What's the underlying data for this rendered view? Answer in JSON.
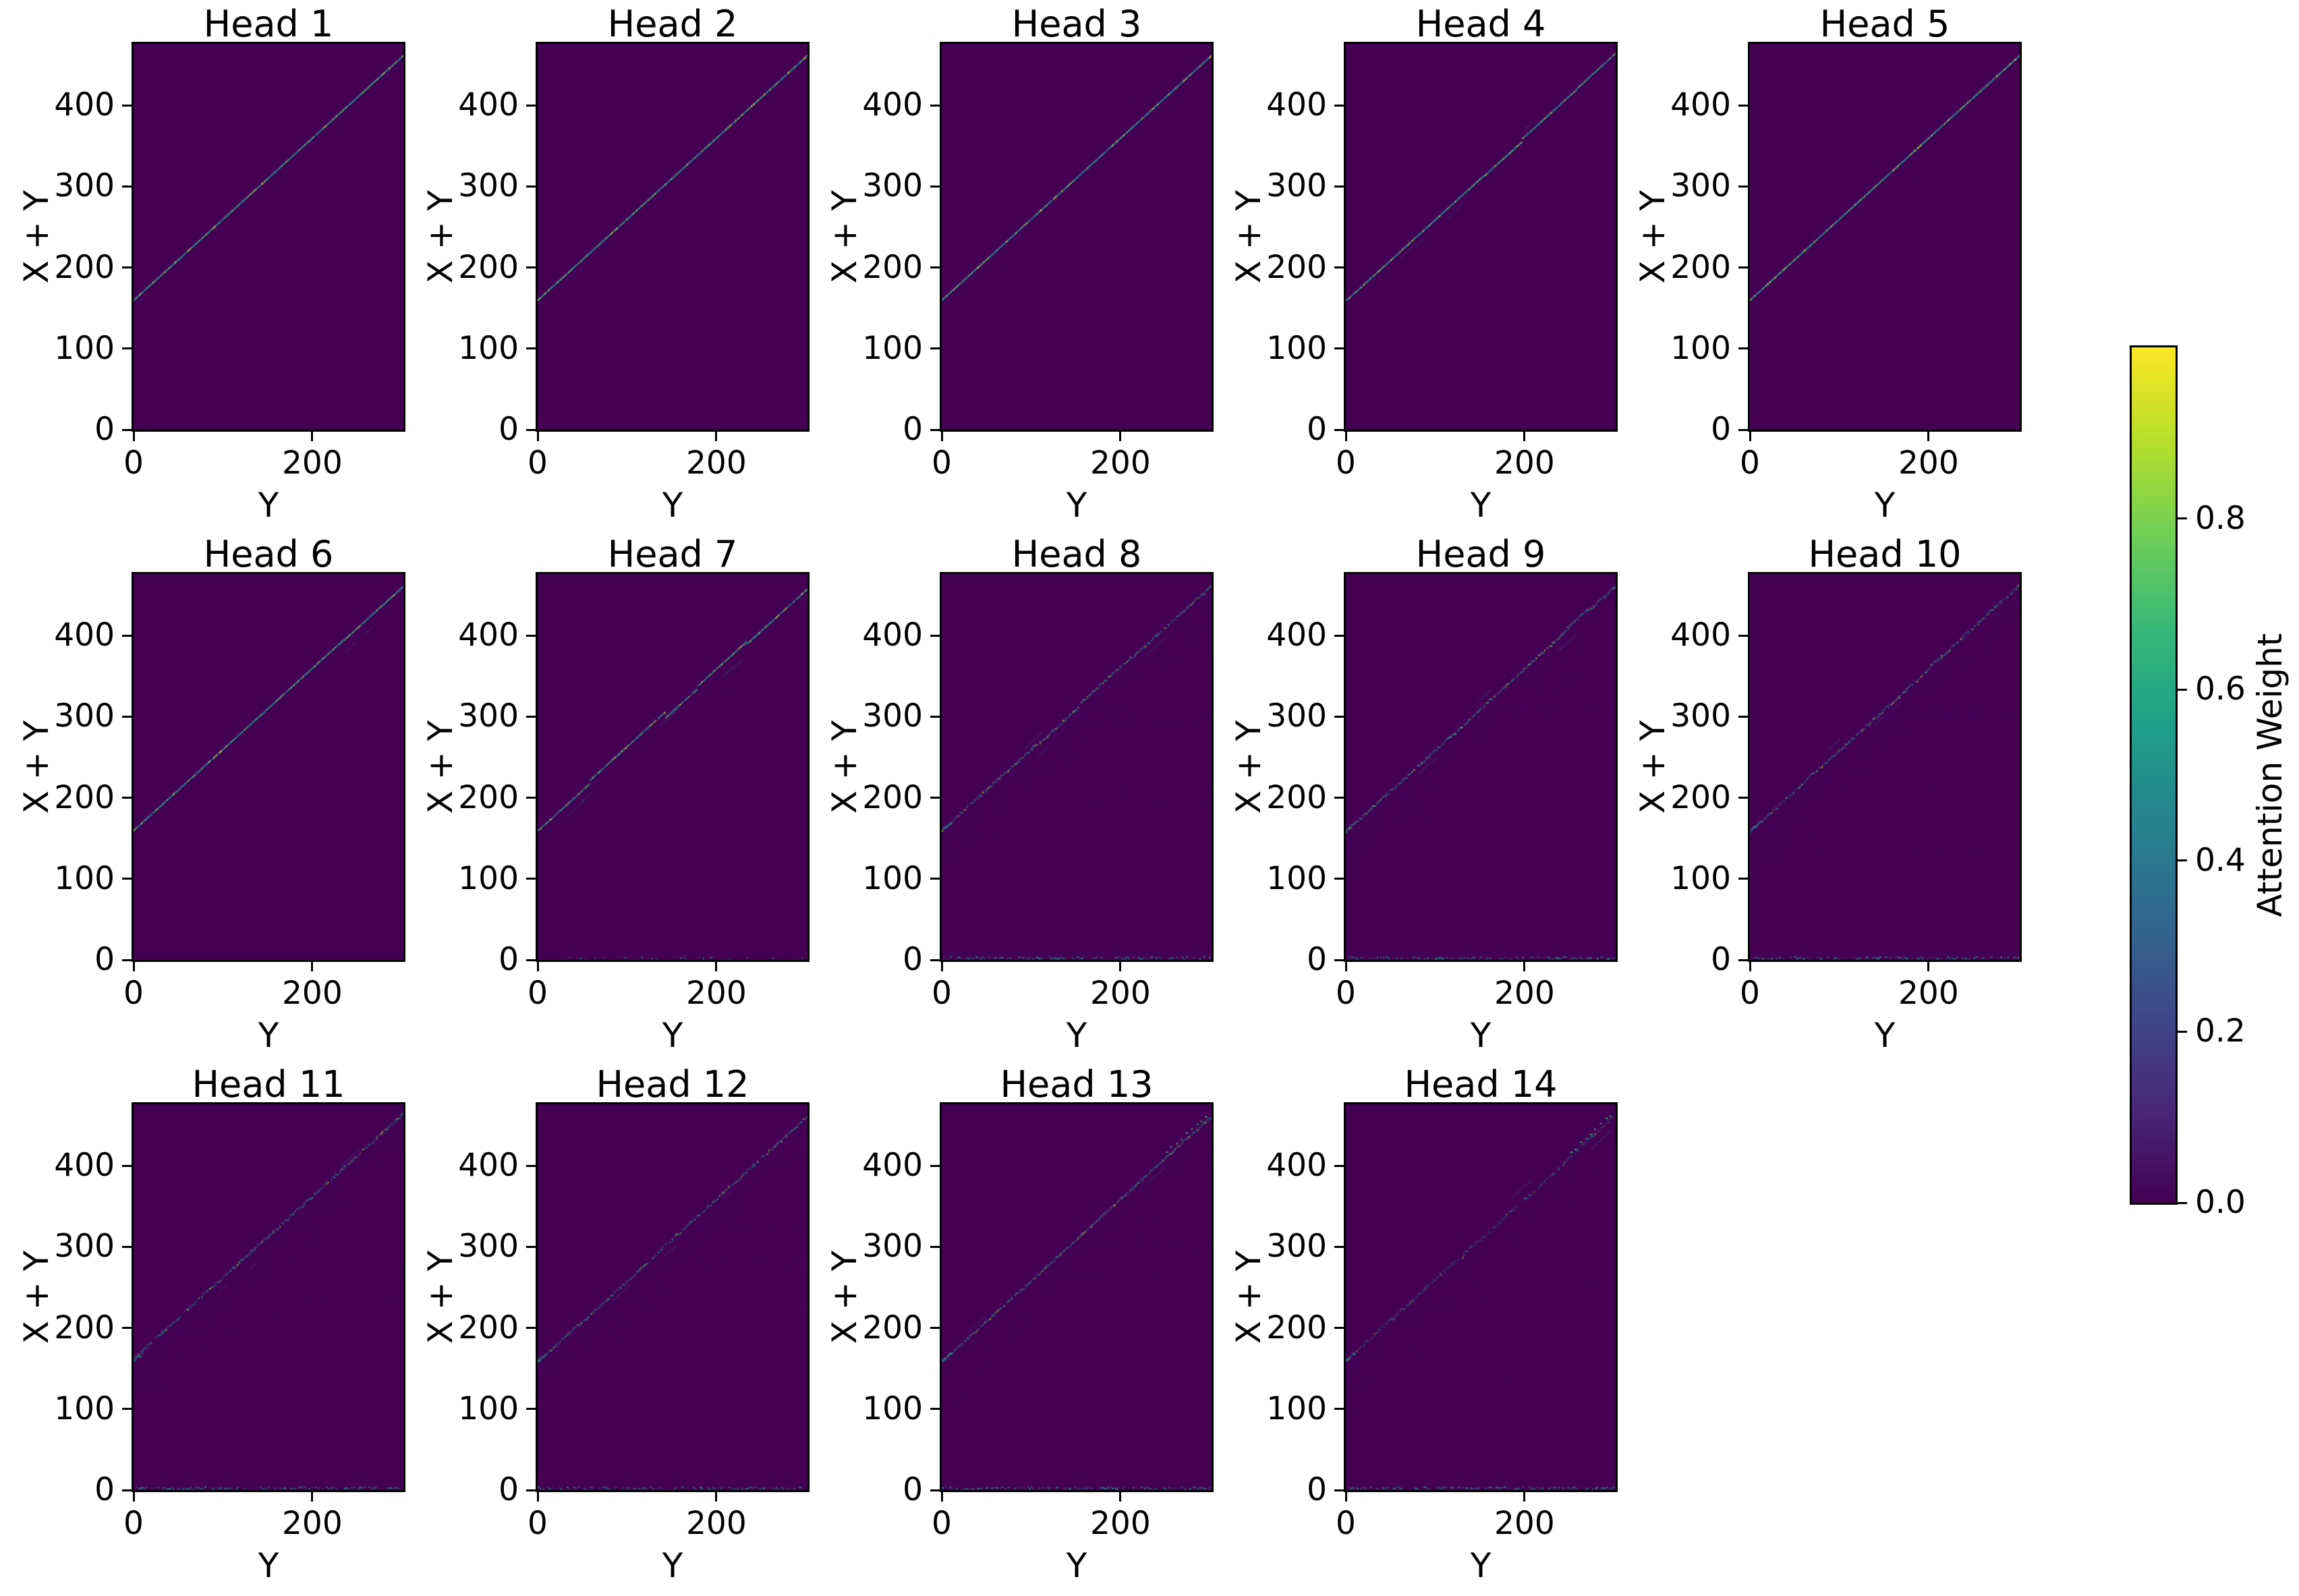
{
  "figure": {
    "description": "Grid of attention-weight heatmaps for 14 transformer heads",
    "background": "#ffffff"
  },
  "chart_data": {
    "type": "heatmap",
    "colormap": "viridis",
    "grid": {
      "rows": 3,
      "cols": 5,
      "count": 14
    },
    "axes": {
      "xlabel": "Y",
      "ylabel": "X + Y",
      "xticks": [
        0,
        200
      ],
      "yticks": [
        0,
        100,
        200,
        300,
        400
      ],
      "xlim": [
        0,
        302
      ],
      "ylim": [
        0,
        476
      ]
    },
    "diagonal": {
      "description": "bright attention ridge along X+Y = 160 + Y",
      "y_at_x0": 160,
      "y_at_x300": 460,
      "slope": 1
    },
    "colorbar": {
      "label": "Attention Weight",
      "ticks": [
        0.0,
        0.2,
        0.4,
        0.6,
        0.8
      ],
      "tick_labels": [
        "0.0",
        "0.2",
        "0.4",
        "0.6",
        "0.8"
      ],
      "vmin": 0.0,
      "vmax": 1.0
    },
    "subplots": [
      {
        "title": "Head 1",
        "pattern": "sharp clean diagonal",
        "style": {
          "seed": 11,
          "kinks": 0,
          "offshoots": 0,
          "jitter": 0,
          "gap": 0.01,
          "alpha_min": 0.8,
          "alpha_max": 1.0,
          "bright_p": 0.05,
          "green_p": 0.1,
          "line_width": 2.1,
          "cloud": 0,
          "bottom_speckles": 0,
          "green_dashes": false
        }
      },
      {
        "title": "Head 2",
        "pattern": "sharp clean diagonal",
        "style": {
          "seed": 23,
          "kinks": 0,
          "offshoots": 0,
          "jitter": 0,
          "gap": 0.01,
          "alpha_min": 0.8,
          "alpha_max": 1.0,
          "bright_p": 0.05,
          "green_p": 0.1,
          "line_width": 2.1,
          "cloud": 0,
          "bottom_speckles": 0,
          "green_dashes": false
        }
      },
      {
        "title": "Head 3",
        "pattern": "sharp clean diagonal",
        "style": {
          "seed": 37,
          "kinks": 0,
          "offshoots": 0,
          "jitter": 0,
          "gap": 0.015,
          "alpha_min": 0.8,
          "alpha_max": 1.0,
          "bright_p": 0.05,
          "green_p": 0.1,
          "line_width": 2.1,
          "cloud": 0,
          "bottom_speckles": 0,
          "green_dashes": false
        }
      },
      {
        "title": "Head 4",
        "pattern": "diagonal with small kinks and offshoots",
        "style": {
          "seed": 41,
          "kinks": 5,
          "offshoots": 4,
          "jitter": 0.4,
          "gap": 0.02,
          "alpha_min": 0.75,
          "alpha_max": 1.0,
          "bright_p": 0.06,
          "green_p": 0.1,
          "line_width": 2.1,
          "cloud": 0,
          "bottom_speckles": 0,
          "green_dashes": false
        }
      },
      {
        "title": "Head 5",
        "pattern": "sharp clean diagonal",
        "style": {
          "seed": 59,
          "kinks": 0,
          "offshoots": 0,
          "jitter": 0,
          "gap": 0.01,
          "alpha_min": 0.8,
          "alpha_max": 1.0,
          "bright_p": 0.05,
          "green_p": 0.1,
          "line_width": 2.1,
          "cloud": 0,
          "bottom_speckles": 0,
          "green_dashes": false
        }
      },
      {
        "title": "Head 6",
        "pattern": "diagonal with slight kinks",
        "style": {
          "seed": 61,
          "kinks": 3,
          "offshoots": 2,
          "jitter": 0.3,
          "gap": 0.02,
          "alpha_min": 0.7,
          "alpha_max": 1.0,
          "bright_p": 0.05,
          "green_p": 0.1,
          "line_width": 2.1,
          "cloud": 0,
          "bottom_speckles": 0,
          "green_dashes": false
        }
      },
      {
        "title": "Head 7",
        "pattern": "stepped diagonal with offshoots, sparse bottom dots",
        "style": {
          "seed": 71,
          "kinks": 6,
          "offshoots": 5,
          "jitter": 0.5,
          "gap": 0.05,
          "alpha_min": 0.7,
          "alpha_max": 1.0,
          "bright_p": 0.06,
          "green_p": 0.1,
          "line_width": 2.0,
          "cloud": 0,
          "bottom_speckles": 0.12,
          "green_dashes": false
        }
      },
      {
        "title": "Head 8",
        "pattern": "noisy speckled diagonal, faint cloud below, bottom speckle row",
        "style": {
          "seed": 83,
          "kinks": 3,
          "offshoots": 3,
          "jitter": 2.2,
          "gap": 0.18,
          "alpha_min": 0.3,
          "alpha_max": 0.95,
          "bright_p": 0.04,
          "green_p": 0.1,
          "line_width": 1.8,
          "cloud": 0.9,
          "bottom_speckles": 0.95,
          "green_dashes": false
        }
      },
      {
        "title": "Head 9",
        "pattern": "noisy speckled diagonal, faint cloud below, bottom speckle row",
        "style": {
          "seed": 97,
          "kinks": 3,
          "offshoots": 3,
          "jitter": 2.3,
          "gap": 0.18,
          "alpha_min": 0.3,
          "alpha_max": 0.95,
          "bright_p": 0.04,
          "green_p": 0.1,
          "line_width": 1.8,
          "cloud": 0.85,
          "bottom_speckles": 0.95,
          "green_dashes": false
        }
      },
      {
        "title": "Head 10",
        "pattern": "very noisy diagonal, strong cloud and bands, bottom speckle row",
        "style": {
          "seed": 103,
          "kinks": 3,
          "offshoots": 3,
          "jitter": 2.6,
          "gap": 0.2,
          "alpha_min": 0.3,
          "alpha_max": 0.9,
          "bright_p": 0.03,
          "green_p": 0.1,
          "line_width": 1.8,
          "cloud": 1.25,
          "bottom_speckles": 0.95,
          "green_dashes": false
        }
      },
      {
        "title": "Head 11",
        "pattern": "noisy diagonal, cloud near start, bottom speckle row",
        "style": {
          "seed": 113,
          "kinks": 3,
          "offshoots": 3,
          "jitter": 2.4,
          "gap": 0.2,
          "alpha_min": 0.3,
          "alpha_max": 0.9,
          "bright_p": 0.03,
          "green_p": 0.1,
          "line_width": 1.8,
          "cloud": 0.95,
          "bottom_speckles": 0.95,
          "green_dashes": false
        }
      },
      {
        "title": "Head 12",
        "pattern": "noisy diagonal, cloud near start, bottom speckle row",
        "style": {
          "seed": 127,
          "kinks": 3,
          "offshoots": 3,
          "jitter": 2.4,
          "gap": 0.18,
          "alpha_min": 0.3,
          "alpha_max": 0.9,
          "bright_p": 0.03,
          "green_p": 0.1,
          "line_width": 1.8,
          "cloud": 0.95,
          "bottom_speckles": 0.95,
          "green_dashes": false
        }
      },
      {
        "title": "Head 13",
        "pattern": "moderately noisy diagonal, light cloud, bottom speckle row",
        "style": {
          "seed": 131,
          "kinks": 2,
          "offshoots": 2,
          "jitter": 2.0,
          "gap": 0.15,
          "alpha_min": 0.3,
          "alpha_max": 0.85,
          "bright_p": 0.03,
          "green_p": 0.1,
          "line_width": 1.8,
          "cloud": 0.6,
          "bottom_speckles": 0.9,
          "green_dashes": true
        }
      },
      {
        "title": "Head 14",
        "pattern": "faint diffuse diagonal, green dashes near top, bottom speckle row",
        "style": {
          "seed": 139,
          "kinks": 2,
          "offshoots": 2,
          "jitter": 3.0,
          "gap": 0.3,
          "alpha_min": 0.2,
          "alpha_max": 0.65,
          "bright_p": 0.02,
          "green_p": 0.12,
          "line_width": 1.8,
          "cloud": 0.55,
          "bottom_speckles": 0.9,
          "green_dashes": true
        }
      }
    ]
  },
  "colors": {
    "figure_background": "#ffffff",
    "text": "#000000",
    "heatmap_background": "#440154",
    "line_teal": "#21918c",
    "line_blue": "#2c728e",
    "line_green": "#35b779",
    "line_lime": "#aadc32",
    "line_bright": "#fde725",
    "cloud": "#472d7b",
    "cloud_band": "#46327e",
    "offshoot": "#3b528b",
    "speckle1": "#31688e",
    "speckle2": "#26828e",
    "speckle3": "#1f9e89",
    "spine": "#000000",
    "viridis_stops": [
      "#440154",
      "#482878",
      "#3e4989",
      "#31688e",
      "#26828e",
      "#1f9e89",
      "#35b779",
      "#6ece58",
      "#b5de2b",
      "#fde725"
    ]
  }
}
